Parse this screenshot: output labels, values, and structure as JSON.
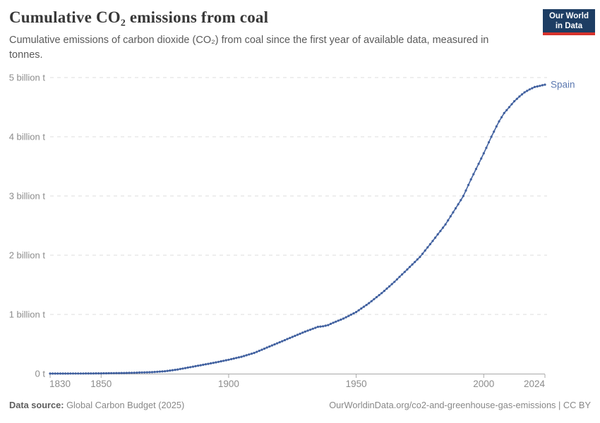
{
  "header": {
    "title": "Cumulative CO₂ emissions from coal",
    "subtitle": "Cumulative emissions of carbon dioxide (CO₂) from coal since the first year of available data, measured in tonnes."
  },
  "logo": {
    "line1": "Our World",
    "line2": "in Data",
    "bg_color": "#1d3d63",
    "bar_color": "#d7332c"
  },
  "footer": {
    "source_label": "Data source:",
    "source_value": " Global Carbon Budget (2025)",
    "credit": "OurWorldinData.org/co2-and-greenhouse-gas-emissions | CC BY"
  },
  "chart_data": {
    "type": "line",
    "title": "Cumulative CO₂ emissions from coal",
    "unit": "tonnes of CO₂",
    "xlabel": "",
    "ylabel": "",
    "grid": "dashed-horizontal",
    "legend_position": "end-of-line",
    "x_axis": {
      "min": 1830,
      "max": 2024,
      "ticks": [
        1830,
        1850,
        1900,
        1950,
        2000,
        2024
      ]
    },
    "y_axis": {
      "min": 0,
      "max": 5,
      "ticks": [
        {
          "value": 0,
          "label": "0 t"
        },
        {
          "value": 1,
          "label": "1 billion t"
        },
        {
          "value": 2,
          "label": "2 billion t"
        },
        {
          "value": 3,
          "label": "3 billion t"
        },
        {
          "value": 4,
          "label": "4 billion t"
        },
        {
          "value": 5,
          "label": "5 billion t"
        }
      ]
    },
    "series": [
      {
        "name": "Spain",
        "color": "#4a68a4",
        "dot_color": "#40609f",
        "label_color": "#5b78b0",
        "unit_scale": "billion tonnes",
        "points": [
          [
            1830,
            0.001
          ],
          [
            1840,
            0.002
          ],
          [
            1850,
            0.005
          ],
          [
            1860,
            0.012
          ],
          [
            1870,
            0.025
          ],
          [
            1875,
            0.04
          ],
          [
            1880,
            0.07
          ],
          [
            1885,
            0.11
          ],
          [
            1890,
            0.15
          ],
          [
            1895,
            0.19
          ],
          [
            1900,
            0.235
          ],
          [
            1905,
            0.285
          ],
          [
            1910,
            0.35
          ],
          [
            1915,
            0.44
          ],
          [
            1920,
            0.53
          ],
          [
            1925,
            0.62
          ],
          [
            1930,
            0.71
          ],
          [
            1935,
            0.79
          ],
          [
            1937,
            0.8
          ],
          [
            1939,
            0.82
          ],
          [
            1941,
            0.86
          ],
          [
            1945,
            0.93
          ],
          [
            1950,
            1.04
          ],
          [
            1955,
            1.19
          ],
          [
            1960,
            1.36
          ],
          [
            1965,
            1.55
          ],
          [
            1970,
            1.76
          ],
          [
            1975,
            1.97
          ],
          [
            1980,
            2.24
          ],
          [
            1985,
            2.52
          ],
          [
            1990,
            2.86
          ],
          [
            1992,
            3.0
          ],
          [
            1995,
            3.28
          ],
          [
            2000,
            3.72
          ],
          [
            2003,
            4.0
          ],
          [
            2006,
            4.26
          ],
          [
            2008,
            4.4
          ],
          [
            2010,
            4.5
          ],
          [
            2012,
            4.6
          ],
          [
            2014,
            4.68
          ],
          [
            2016,
            4.75
          ],
          [
            2018,
            4.8
          ],
          [
            2020,
            4.84
          ],
          [
            2022,
            4.86
          ],
          [
            2024,
            4.88
          ]
        ]
      }
    ],
    "colors": {
      "gridline": "#dedede",
      "axis_line": "#a8a8a8",
      "tick_label": "#8c8c8c"
    }
  }
}
